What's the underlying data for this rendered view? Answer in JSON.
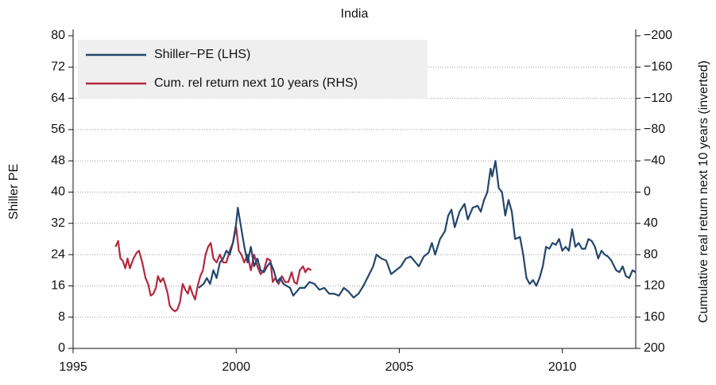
{
  "chart_data": {
    "type": "line",
    "title": "India",
    "y_label": "Shiller PE",
    "y2_label": "Cumulative real return next 10 years (inverted)",
    "xlim": [
      1995,
      2012.25
    ],
    "xticks": [
      1995,
      2000,
      2005,
      2010
    ],
    "ylim": [
      0,
      80
    ],
    "yticks": [
      0,
      8,
      16,
      24,
      32,
      40,
      48,
      56,
      64,
      72,
      80
    ],
    "y2lim": [
      200,
      -200
    ],
    "y2_inverted": true,
    "y2ticks": [
      {
        "value": -200,
        "label": "−200"
      },
      {
        "value": -160,
        "label": "−160"
      },
      {
        "value": -120,
        "label": "−120"
      },
      {
        "value": -80,
        "label": "−80"
      },
      {
        "value": -40,
        "label": "−40"
      },
      0,
      40,
      80,
      120,
      160,
      200
    ],
    "grid": true,
    "legend": "upper left",
    "series": [
      {
        "name": "Shiller−PE (LHS)",
        "color": "#23466e",
        "axis": "y",
        "x": [
          1998.85,
          1999.0,
          1999.1,
          1999.2,
          1999.3,
          1999.4,
          1999.5,
          1999.6,
          1999.7,
          1999.8,
          1999.9,
          2000.0,
          2000.05,
          2000.15,
          2000.25,
          2000.35,
          2000.45,
          2000.55,
          2000.65,
          2000.75,
          2000.85,
          2000.95,
          2001.05,
          2001.15,
          2001.25,
          2001.35,
          2001.45,
          2001.55,
          2001.65,
          2001.75,
          2001.85,
          2001.95,
          2002.1,
          2002.25,
          2002.4,
          2002.55,
          2002.7,
          2002.85,
          2003.0,
          2003.15,
          2003.3,
          2003.45,
          2003.6,
          2003.75,
          2003.9,
          2004.05,
          2004.2,
          2004.3,
          2004.45,
          2004.6,
          2004.75,
          2004.9,
          2005.05,
          2005.2,
          2005.35,
          2005.5,
          2005.6,
          2005.75,
          2005.9,
          2006.0,
          2006.1,
          2006.25,
          2006.4,
          2006.5,
          2006.6,
          2006.7,
          2006.85,
          2007.0,
          2007.1,
          2007.25,
          2007.4,
          2007.5,
          2007.6,
          2007.7,
          2007.8,
          2007.85,
          2007.95,
          2008.05,
          2008.15,
          2008.25,
          2008.35,
          2008.45,
          2008.55,
          2008.7,
          2008.8,
          2008.9,
          2009.0,
          2009.1,
          2009.2,
          2009.3,
          2009.4,
          2009.5,
          2009.6,
          2009.7,
          2009.8,
          2009.9,
          2010.0,
          2010.1,
          2010.2,
          2010.3,
          2010.4,
          2010.5,
          2010.6,
          2010.7,
          2010.8,
          2010.9,
          2011.0,
          2011.1,
          2011.2,
          2011.3,
          2011.4,
          2011.5,
          2011.65,
          2011.75,
          2011.85,
          2011.95,
          2012.05,
          2012.15,
          2012.25
        ],
        "values": [
          15.5,
          16.5,
          18,
          16.5,
          20,
          18,
          22,
          23,
          25,
          24,
          27,
          32,
          36,
          31,
          26,
          22,
          26,
          21,
          23,
          20,
          19.5,
          21,
          22,
          20,
          17,
          18,
          16.5,
          16,
          15.5,
          13.5,
          14.5,
          15.5,
          15.5,
          17,
          16.5,
          15,
          15.5,
          14,
          14,
          13.5,
          15.5,
          14.5,
          13,
          14,
          16,
          18.5,
          21,
          24,
          23,
          22.5,
          19,
          20,
          21,
          23,
          23.5,
          22,
          21,
          23.5,
          24.5,
          27,
          24,
          28,
          30,
          34,
          35.5,
          31,
          35,
          37,
          33,
          36,
          36.5,
          35,
          38,
          40,
          46,
          44,
          48,
          41,
          40,
          34,
          38,
          35,
          28,
          28.5,
          24,
          18,
          16.5,
          17.5,
          16,
          18,
          21,
          26,
          25.5,
          27,
          26.5,
          28,
          25,
          26,
          25,
          30.5,
          26,
          27,
          25.5,
          25.5,
          28,
          27.5,
          26,
          23,
          25,
          24,
          23.5,
          22.5,
          20,
          19.5,
          21,
          18.5,
          18,
          20,
          19.5
        ]
      },
      {
        "name": "Cum. rel return next 10 years (RHS)",
        "color": "#b2283f",
        "axis": "y2",
        "x": [
          1996.3,
          1996.38,
          1996.45,
          1996.52,
          1996.6,
          1996.67,
          1996.74,
          1996.85,
          1996.95,
          1997.02,
          1997.12,
          1997.22,
          1997.3,
          1997.38,
          1997.46,
          1997.54,
          1997.6,
          1997.68,
          1997.76,
          1997.82,
          1997.9,
          1997.96,
          1998.04,
          1998.12,
          1998.2,
          1998.28,
          1998.36,
          1998.44,
          1998.52,
          1998.58,
          1998.66,
          1998.74,
          1998.82,
          1998.9,
          1998.98,
          1999.06,
          1999.14,
          1999.22,
          1999.3,
          1999.4,
          1999.5,
          1999.6,
          1999.7,
          1999.8,
          1999.9,
          2000.0,
          2000.08,
          2000.16,
          2000.25,
          2000.35,
          2000.45,
          2000.55,
          2000.65,
          2000.75,
          2000.85,
          2000.95,
          2001.05,
          2001.12,
          2001.2,
          2001.3,
          2001.4,
          2001.5,
          2001.6,
          2001.7,
          2001.78,
          2001.86,
          2001.95,
          2002.05,
          2002.12,
          2002.2,
          2002.3
        ],
        "values": [
          70,
          62.5,
          85,
          87.5,
          97.5,
          85,
          97.5,
          85,
          77.5,
          75,
          90,
          110,
          117.5,
          132.5,
          130,
          122.5,
          107.5,
          115,
          110,
          117.5,
          130,
          145,
          150,
          152.5,
          150,
          140,
          117.5,
          125,
          130,
          120,
          130,
          137.5,
          120,
          107.5,
          100,
          80,
          70,
          65,
          85,
          90,
          80,
          90,
          90,
          75,
          65,
          45,
          75,
          80,
          90,
          80,
          100,
          80,
          95,
          105,
          100,
          85,
          87.5,
          115,
          110,
          117.5,
          107.5,
          115,
          115,
          102.5,
          115,
          117.5,
          100,
          95,
          102.5,
          97.5,
          100
        ]
      }
    ]
  }
}
